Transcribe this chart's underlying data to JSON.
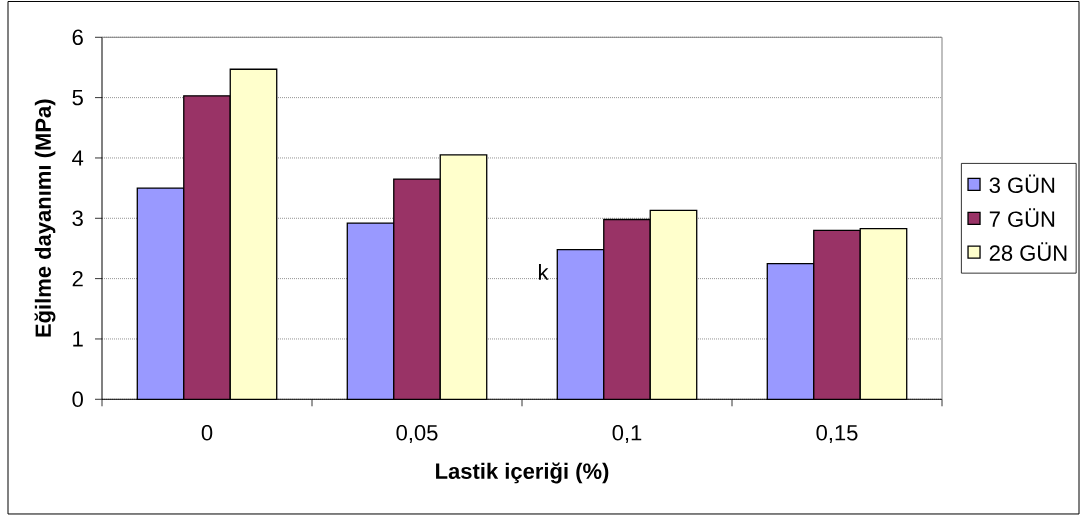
{
  "chart_data": {
    "type": "bar",
    "xlabel": "Lastik içeriği (%)",
    "ylabel": "Eğilme dayanımı (MPa)",
    "categories": [
      "0",
      "0,05",
      "0,1",
      "0,15"
    ],
    "series": [
      {
        "name": "3 GÜN",
        "color": "#9999ff",
        "values": [
          3.5,
          2.92,
          2.48,
          2.25
        ]
      },
      {
        "name": "7 GÜN",
        "color": "#993366",
        "values": [
          5.03,
          3.65,
          2.98,
          2.8
        ]
      },
      {
        "name": "28 GÜN",
        "color": "#ffffcc",
        "values": [
          5.47,
          4.05,
          3.13,
          2.83
        ]
      }
    ],
    "ylim": [
      0,
      6
    ],
    "yticks": [
      0,
      1,
      2,
      3,
      4,
      5,
      6
    ],
    "grid": "y",
    "legend": "right",
    "annotations": [
      "k"
    ]
  }
}
